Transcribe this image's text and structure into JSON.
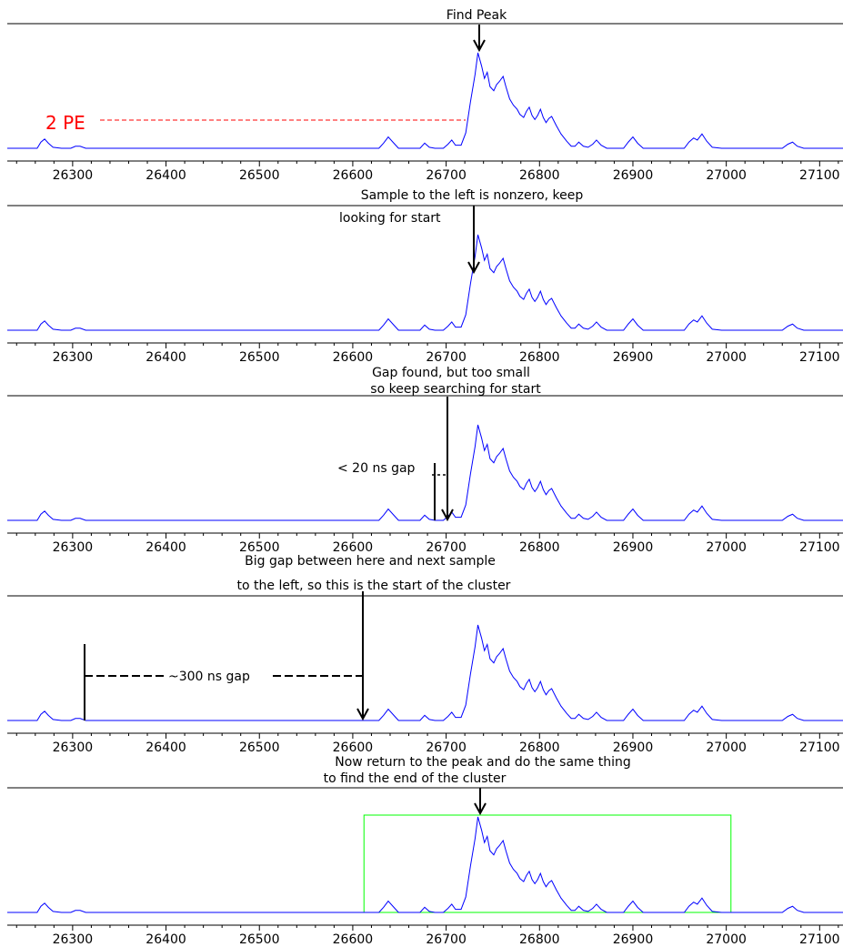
{
  "chart_data": [
    {
      "type": "line",
      "title": "Find Peak",
      "xlim": [
        26230,
        27125
      ],
      "ylim": [
        0,
        1.05
      ],
      "xticks": [
        "26300",
        "26400",
        "26500",
        "26600",
        "26700",
        "26800",
        "26900",
        "27000",
        "27100"
      ],
      "annotations": [
        {
          "text": "2 PE"
        }
      ]
    },
    {
      "type": "line",
      "title": "Sample to the left is nonzero, keep",
      "xlim": [
        26230,
        27125
      ],
      "ylim": [
        0,
        1.05
      ],
      "xticks": [
        "26300",
        "26400",
        "26500",
        "26600",
        "26700",
        "26800",
        "26900",
        "27000",
        "27100"
      ],
      "annotations": [
        {
          "text": "looking for start"
        }
      ]
    },
    {
      "type": "line",
      "title": "Gap found, but too small",
      "xlim": [
        26230,
        27125
      ],
      "ylim": [
        0,
        1.05
      ],
      "xticks": [
        "26300",
        "26400",
        "26500",
        "26600",
        "26700",
        "26800",
        "26900",
        "27000",
        "27100"
      ],
      "annotations": [
        {
          "text": "so keep searching for start"
        },
        {
          "text": "< 20 ns gap"
        }
      ]
    },
    {
      "type": "line",
      "title": "Big gap between here and next sample",
      "xlim": [
        26230,
        27125
      ],
      "ylim": [
        0,
        1.05
      ],
      "xticks": [
        "26300",
        "26400",
        "26500",
        "26600",
        "26700",
        "26800",
        "26900",
        "27000",
        "27100"
      ],
      "annotations": [
        {
          "text": "to the left, so this is the start of the cluster"
        },
        {
          "text": "~300 ns gap"
        }
      ]
    },
    {
      "type": "line",
      "title": "Now return to the peak and do the same thing",
      "xlim": [
        26230,
        27125
      ],
      "ylim": [
        0,
        1.05
      ],
      "xticks": [
        "26300",
        "26400",
        "26500",
        "26600",
        "26700",
        "26800",
        "26900",
        "27000",
        "27100"
      ],
      "annotations": [
        {
          "text": "to find the end of the cluster"
        }
      ],
      "cluster_window": [
        26612,
        27005
      ]
    }
  ],
  "waveform": {
    "color": "#0000ff",
    "baseline": 0,
    "points": [
      [
        26230,
        0
      ],
      [
        26262,
        0
      ],
      [
        26266,
        0.06
      ],
      [
        26270,
        0.09
      ],
      [
        26274,
        0.05
      ],
      [
        26279,
        0.01
      ],
      [
        26288,
        0
      ],
      [
        26298,
        0
      ],
      [
        26303,
        0.02
      ],
      [
        26308,
        0.02
      ],
      [
        26314,
        0
      ],
      [
        26340,
        0
      ],
      [
        26628,
        0
      ],
      [
        26633,
        0.05
      ],
      [
        26638,
        0.11
      ],
      [
        26643,
        0.06
      ],
      [
        26649,
        0
      ],
      [
        26660,
        0
      ],
      [
        26672,
        0
      ],
      [
        26677,
        0.05
      ],
      [
        26682,
        0.01
      ],
      [
        26688,
        0
      ],
      [
        26697,
        0
      ],
      [
        26702,
        0.04
      ],
      [
        26706,
        0.08
      ],
      [
        26710,
        0.03
      ],
      [
        26716,
        0.03
      ],
      [
        26721,
        0.15
      ],
      [
        26726,
        0.45
      ],
      [
        26731,
        0.72
      ],
      [
        26734,
        0.93
      ],
      [
        26738,
        0.8
      ],
      [
        26741,
        0.68
      ],
      [
        26744,
        0.74
      ],
      [
        26747,
        0.6
      ],
      [
        26751,
        0.56
      ],
      [
        26754,
        0.62
      ],
      [
        26757,
        0.65
      ],
      [
        26761,
        0.7
      ],
      [
        26764,
        0.6
      ],
      [
        26768,
        0.48
      ],
      [
        26772,
        0.42
      ],
      [
        26776,
        0.38
      ],
      [
        26779,
        0.33
      ],
      [
        26783,
        0.3
      ],
      [
        26786,
        0.36
      ],
      [
        26789,
        0.4
      ],
      [
        26792,
        0.32
      ],
      [
        26795,
        0.28
      ],
      [
        26798,
        0.32
      ],
      [
        26801,
        0.38
      ],
      [
        26804,
        0.3
      ],
      [
        26807,
        0.25
      ],
      [
        26810,
        0.29
      ],
      [
        26813,
        0.31
      ],
      [
        26818,
        0.22
      ],
      [
        26823,
        0.14
      ],
      [
        26829,
        0.07
      ],
      [
        26834,
        0.02
      ],
      [
        26838,
        0.02
      ],
      [
        26842,
        0.06
      ],
      [
        26847,
        0.02
      ],
      [
        26852,
        0.01
      ],
      [
        26857,
        0.04
      ],
      [
        26861,
        0.08
      ],
      [
        26866,
        0.03
      ],
      [
        26872,
        0
      ],
      [
        26890,
        0
      ],
      [
        26895,
        0.06
      ],
      [
        26900,
        0.11
      ],
      [
        26905,
        0.05
      ],
      [
        26911,
        0
      ],
      [
        26955,
        0
      ],
      [
        26960,
        0.06
      ],
      [
        26965,
        0.1
      ],
      [
        26969,
        0.08
      ],
      [
        26974,
        0.14
      ],
      [
        26979,
        0.07
      ],
      [
        26985,
        0.01
      ],
      [
        26995,
        0
      ],
      [
        27060,
        0
      ],
      [
        27066,
        0.04
      ],
      [
        27071,
        0.06
      ],
      [
        27076,
        0.02
      ],
      [
        27083,
        0
      ],
      [
        27125,
        0
      ]
    ]
  }
}
